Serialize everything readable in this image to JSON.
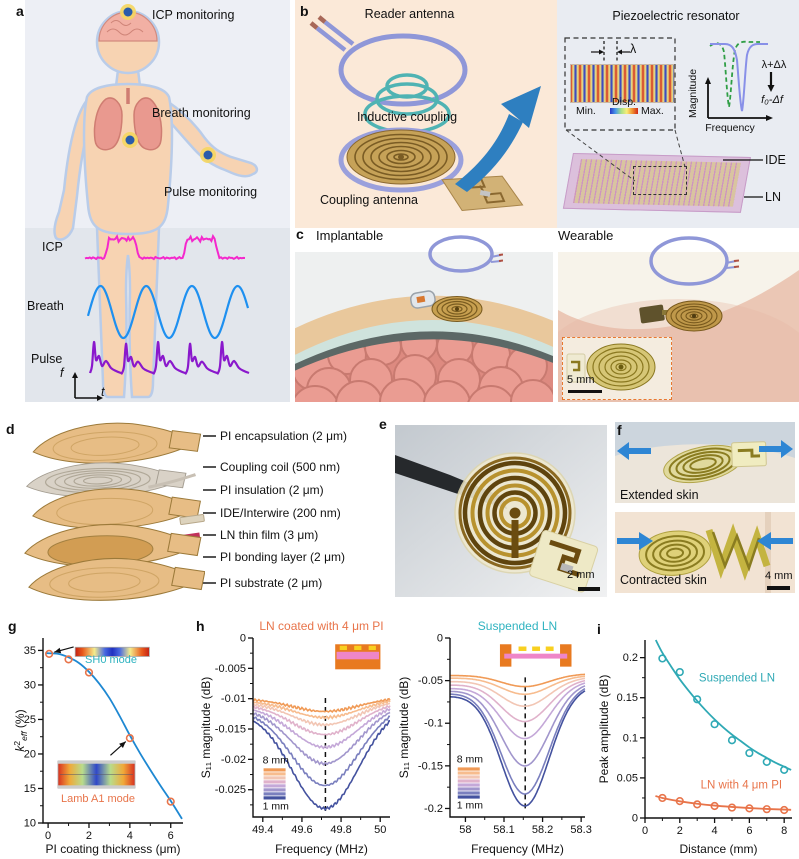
{
  "panel_labels": {
    "a": "a",
    "b": "b",
    "c": "c",
    "d": "d",
    "e": "e",
    "f": "f",
    "g": "g",
    "h": "h",
    "i": "i"
  },
  "a": {
    "icp_monitoring": "ICP monitoring",
    "breath_monitoring": "Breath monitoring",
    "pulse_monitoring": "Pulse monitoring",
    "icp_label": "ICP",
    "breath_label": "Breath",
    "pulse_label": "Pulse",
    "axis_f": "f",
    "axis_t": "t"
  },
  "b": {
    "reader_antenna": "Reader antenna",
    "inductive_coupling": "Inductive coupling",
    "coupling_antenna": "Coupling antenna",
    "resonator_title": "Piezoelectric resonator",
    "lambda": "λ",
    "disp": "Disp.",
    "min": "Min.",
    "max": "Max.",
    "magnitude": "Magnitude",
    "frequency": "Frequency",
    "lambda_shift": "λ+Δλ",
    "freq_shift": "f₀-Δf",
    "ide": "IDE",
    "ln": "LN"
  },
  "c": {
    "implantable": "Implantable",
    "wearable": "Wearable",
    "inset_scale": "5 mm"
  },
  "d": {
    "layers": [
      {
        "name": "PI encapsulation (2 μm)"
      },
      {
        "name": "Coupling coil (500 nm)"
      },
      {
        "name": "PI insulation (2 μm)"
      },
      {
        "name": "IDE/Interwire (200 nm)"
      },
      {
        "name": "LN thin film (3 μm)"
      },
      {
        "name": "PI bonding layer (2 μm)"
      },
      {
        "name": "PI substrate (2 μm)"
      }
    ]
  },
  "e": {
    "scale_bar": "2 mm"
  },
  "f": {
    "extended_label": "Extended skin",
    "contracted_label": "Contracted skin",
    "scale_bar": "4 mm"
  },
  "chart_data": [
    {
      "id": "g",
      "type": "scatter",
      "xlabel": "PI coating thickness (μm)",
      "ylabel_rich": [
        {
          "t": "k",
          "i": 1
        },
        {
          "t": "2",
          "sup": 1
        },
        {
          "t": "eff",
          "sub": 1,
          "i": 1
        },
        {
          "t": " (%)"
        }
      ],
      "xlim": [
        -0.25,
        6.6
      ],
      "ylim": [
        10,
        36.8
      ],
      "xticks": {
        "v": [
          0,
          2,
          4,
          6
        ],
        "l": [
          "0",
          "2",
          "4",
          "6"
        ],
        "minor": 1
      },
      "yticks": {
        "v": [
          10,
          15,
          20,
          25,
          30,
          35
        ],
        "l": [
          "10",
          "15",
          "20",
          "25",
          "30",
          "35"
        ],
        "minor": 2.5
      },
      "series": [
        {
          "name": "k2eff",
          "marker_color": "#e8744a",
          "fit_color": "#1e88d2",
          "points": [
            [
              0.05,
              34.5
            ],
            [
              1,
              33.7
            ],
            [
              2,
              31.8
            ],
            [
              4,
              22.3
            ],
            [
              6,
              13.1
            ]
          ],
          "fit": [
            [
              -0.1,
              34.6
            ],
            [
              0.5,
              34.5
            ],
            [
              1,
              34.0
            ],
            [
              1.5,
              33.2
            ],
            [
              2,
              31.9
            ],
            [
              2.5,
              30.2
            ],
            [
              3,
              28.1
            ],
            [
              3.5,
              25.5
            ],
            [
              4,
              22.7
            ],
            [
              4.5,
              20.1
            ],
            [
              5,
              17.7
            ],
            [
              5.5,
              15.4
            ],
            [
              6,
              13.2
            ],
            [
              6.55,
              10.6
            ]
          ]
        }
      ],
      "arrows": [
        {
          "from": [
            1.25,
            35.5
          ],
          "to": [
            0.3,
            34.75
          ]
        },
        {
          "from": [
            3.05,
            19.8
          ],
          "to": [
            3.8,
            21.8
          ]
        }
      ],
      "insets": [
        {
          "kind": "sh0",
          "fx": 0.23,
          "fy": 0.05,
          "fw": 0.53,
          "fh": 0.05
        },
        {
          "kind": "lamb",
          "fx": 0.107,
          "fy": 0.665,
          "fw": 0.55,
          "fh": 0.146
        }
      ],
      "inset_labels": [
        {
          "text": "SH0 mode",
          "color": "#2fb3c0",
          "fx": 0.486,
          "fy": 0.135
        },
        {
          "text": "Lamb A1 mode",
          "color": "#e8744a",
          "fx": 0.393,
          "fy": 0.886
        }
      ]
    },
    {
      "id": "h1",
      "title": "LN coated with 4 μm PI",
      "title_color": "#e8744a",
      "xlabel": "Frequency (MHz)",
      "ylabel": "S₁₁ magnitude (dB)",
      "xlim": [
        49.35,
        50.05
      ],
      "ylim": [
        -0.0295,
        0
      ],
      "xticks": {
        "v": [
          49.4,
          49.6,
          49.8,
          50
        ],
        "l": [
          "49.4",
          "49.6",
          "49.8",
          "50"
        ],
        "minor": 0.1
      },
      "yticks": {
        "v": [
          0,
          -0.005,
          -0.01,
          -0.015,
          -0.02,
          -0.025
        ],
        "l": [
          "0",
          "-0.005",
          "-0.01",
          "-0.015",
          "-0.02",
          "-0.025"
        ],
        "minor": 0.0025
      },
      "dash_x": 49.72,
      "dash_fy": [
        0.335,
        0.97
      ],
      "model": {
        "sigma": 0.17,
        "noise": 0.00022
      },
      "colors": [
        "#f09a56",
        "#f7bc8e",
        "#f2c6b4",
        "#e0b2cb",
        "#c4a8d8",
        "#a196cc",
        "#7a7fbe",
        "#44529f"
      ],
      "curves": [
        {
          "label": "8 mm",
          "edges": [
            -0.01,
            -0.0098
          ],
          "min": -0.0121
        },
        {
          "edges": [
            -0.0103,
            -0.01
          ],
          "min": -0.0131
        },
        {
          "edges": [
            -0.0106,
            -0.0102
          ],
          "min": -0.0143
        },
        {
          "edges": [
            -0.0109,
            -0.0104
          ],
          "min": -0.0159
        },
        {
          "edges": [
            -0.0112,
            -0.0106
          ],
          "min": -0.018
        },
        {
          "edges": [
            -0.0115,
            -0.0108
          ],
          "min": -0.0207
        },
        {
          "edges": [
            -0.0118,
            -0.011
          ],
          "min": -0.0243
        },
        {
          "label": "1 mm",
          "edges": [
            -0.0121,
            -0.0112
          ],
          "min": -0.0281
        }
      ],
      "legend": {
        "top": "8 mm",
        "bottom": "1 mm",
        "fx": 0.07,
        "fy": 0.7
      },
      "inset": {
        "kind": "coated",
        "fx": 0.6,
        "fy": 0.035,
        "fw": 0.33,
        "fh": 0.14
      }
    },
    {
      "id": "h2",
      "title": "Suspended LN",
      "title_color": "#2fb3c0",
      "xlabel": "Frequency (MHz)",
      "ylabel": "S₁₁ magnitude (dB)",
      "xlim": [
        57.96,
        58.31
      ],
      "ylim": [
        -0.21,
        0
      ],
      "xticks": {
        "v": [
          58,
          58.1,
          58.2,
          58.3
        ],
        "l": [
          "58",
          "58.1",
          "58.2",
          "58.3"
        ],
        "minor": 0.05
      },
      "yticks": {
        "v": [
          0,
          -0.05,
          -0.1,
          -0.15,
          -0.2
        ],
        "l": [
          "0",
          "-0.05",
          "-0.1",
          "-0.15",
          "-0.2"
        ],
        "minor": 0.025
      },
      "dash_x": 58.155,
      "dash_fy": [
        0.22,
        0.97
      ],
      "model": {
        "sigma": 0.062,
        "noise": 0
      },
      "colors": [
        "#f09a56",
        "#f7bc8e",
        "#f2c6b4",
        "#e0b2cb",
        "#c4a8d8",
        "#a196cc",
        "#7a7fbe",
        "#44529f"
      ],
      "curves": [
        {
          "label": "8 mm",
          "edges": [
            -0.044,
            -0.042
          ],
          "min": -0.057
        },
        {
          "edges": [
            -0.047,
            -0.044
          ],
          "min": -0.066
        },
        {
          "edges": [
            -0.051,
            -0.046
          ],
          "min": -0.08
        },
        {
          "edges": [
            -0.055,
            -0.048
          ],
          "min": -0.098
        },
        {
          "edges": [
            -0.059,
            -0.05
          ],
          "min": -0.118
        },
        {
          "edges": [
            -0.062,
            -0.052
          ],
          "min": -0.15
        },
        {
          "edges": [
            -0.065,
            -0.054
          ],
          "min": -0.183
        },
        {
          "label": "1 mm",
          "edges": [
            -0.068,
            -0.056
          ],
          "min": -0.197
        }
      ],
      "legend": {
        "top": "8 mm",
        "bottom": "1 mm",
        "fx": 0.05,
        "fy": 0.695
      },
      "inset": {
        "kind": "suspended",
        "fx": 0.37,
        "fy": 0.035,
        "fw": 0.53,
        "fh": 0.125
      }
    },
    {
      "id": "i",
      "type": "scatter",
      "xlabel": "Distance (mm)",
      "ylabel": "Peak amplitude (dB)",
      "xlim": [
        0,
        8.45
      ],
      "ylim": [
        0,
        0.222
      ],
      "xticks": {
        "v": [
          0,
          2,
          4,
          6,
          8
        ],
        "l": [
          "0",
          "2",
          "4",
          "6",
          "8"
        ],
        "minor": 1
      },
      "yticks": {
        "v": [
          0,
          0.05,
          0.1,
          0.15,
          0.2
        ],
        "l": [
          "0",
          "0.05",
          "0.1",
          "0.15",
          "0.2"
        ],
        "minor": 0.025
      },
      "series": [
        {
          "name": "Suspended LN",
          "marker_color": "#2fa9b5",
          "fit_color": "#2fa9b5",
          "points": [
            [
              1,
              0.199
            ],
            [
              2,
              0.182
            ],
            [
              3,
              0.148
            ],
            [
              4,
              0.117
            ],
            [
              5,
              0.097
            ],
            [
              6,
              0.081
            ],
            [
              7,
              0.07
            ],
            [
              8,
              0.06
            ]
          ],
          "fit": [
            [
              0.62,
              0.222
            ],
            [
              1,
              0.206
            ],
            [
              1.5,
              0.189
            ],
            [
              2,
              0.173
            ],
            [
              2.5,
              0.159
            ],
            [
              3,
              0.146
            ],
            [
              3.5,
              0.134
            ],
            [
              4,
              0.123
            ],
            [
              4.5,
              0.113
            ],
            [
              5,
              0.104
            ],
            [
              5.5,
              0.096
            ],
            [
              6,
              0.088
            ],
            [
              6.5,
              0.081
            ],
            [
              7,
              0.075
            ],
            [
              7.5,
              0.069
            ],
            [
              8,
              0.064
            ],
            [
              8.4,
              0.06
            ]
          ],
          "label_at": [
            3.1,
            0.17
          ]
        },
        {
          "name": "LN with 4 μm PI",
          "marker_color": "#e8744a",
          "fit_color": "#e8744a",
          "points": [
            [
              1,
              0.025
            ],
            [
              2,
              0.021
            ],
            [
              3,
              0.017
            ],
            [
              4,
              0.015
            ],
            [
              5,
              0.013
            ],
            [
              6,
              0.012
            ],
            [
              7,
              0.011
            ],
            [
              8,
              0.01
            ]
          ],
          "fit": [
            [
              0.6,
              0.0275
            ],
            [
              1,
              0.025
            ],
            [
              2,
              0.0208
            ],
            [
              3,
              0.0178
            ],
            [
              4,
              0.0155
            ],
            [
              5,
              0.0138
            ],
            [
              6,
              0.0124
            ],
            [
              7,
              0.0113
            ],
            [
              8,
              0.0105
            ],
            [
              8.4,
              0.0102
            ]
          ],
          "label_at": [
            3.2,
            0.037
          ]
        }
      ]
    }
  ]
}
